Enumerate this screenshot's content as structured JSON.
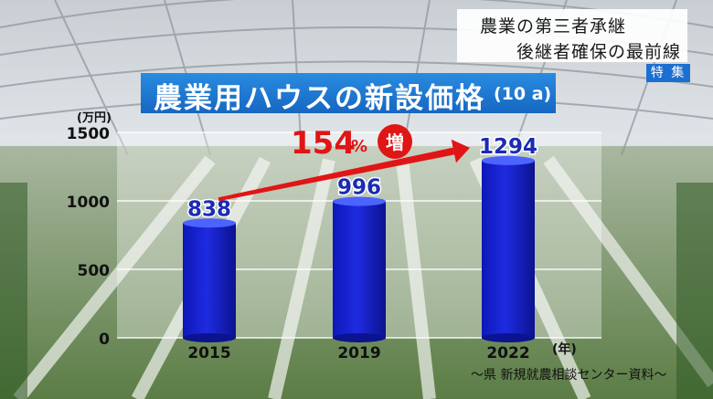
{
  "headline": {
    "line1": "農業の第三者承継",
    "line2": "後継者確保の最前線",
    "badge": "特 集"
  },
  "title": {
    "main": "農業用ハウスの新設価格",
    "sub": "(10 a)"
  },
  "annotation": {
    "percent_value": "154",
    "percent_unit": "%",
    "increase": "増"
  },
  "source": "～県 新規就農相談センター資料～",
  "colors": {
    "bar": "#1f2be0",
    "bar_top": "#4b63ff",
    "arrow": "#e01515",
    "title_bar": "#1c6fd1"
  },
  "chart_data": {
    "type": "bar",
    "categories": [
      "2015",
      "2019",
      "2022"
    ],
    "values": [
      838,
      996,
      1294
    ],
    "ylabel": "(万円)",
    "xlabel": "(年)",
    "ylim": [
      0,
      1500
    ],
    "yticks": [
      "0",
      "500",
      "1000",
      "1500"
    ],
    "data_labels": [
      "838",
      "996",
      "1294"
    ],
    "grid": true
  }
}
